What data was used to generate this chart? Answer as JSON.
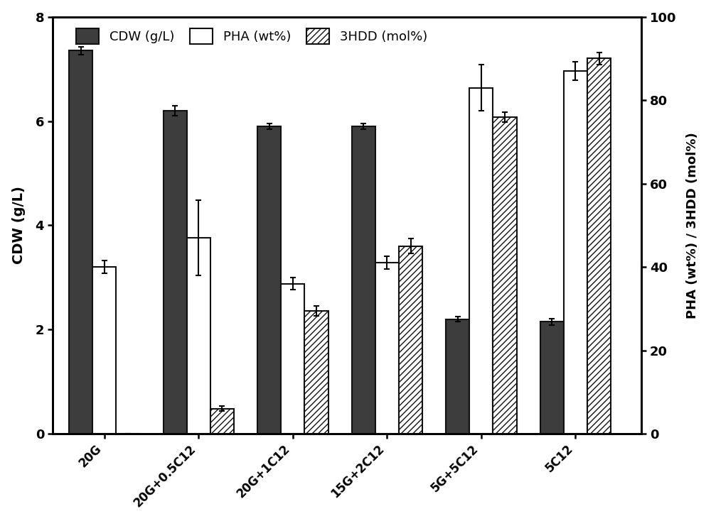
{
  "categories": [
    "20G",
    "20G+0.5C12",
    "20G+1C12",
    "15G+2C12",
    "5G+5C12",
    "5C12"
  ],
  "cdw_values": [
    7.35,
    6.2,
    5.9,
    5.9,
    2.2,
    2.15
  ],
  "cdw_errors": [
    0.08,
    0.1,
    0.05,
    0.05,
    0.05,
    0.06
  ],
  "pha_values": [
    40.0,
    47.0,
    36.0,
    41.0,
    83.0,
    87.0
  ],
  "pha_errors": [
    1.5,
    9.0,
    1.5,
    1.5,
    5.5,
    2.2
  ],
  "hdd_values": [
    0.0,
    6.0,
    29.5,
    45.0,
    76.0,
    90.0
  ],
  "hdd_errors": [
    0.0,
    0.6,
    1.2,
    1.8,
    1.2,
    1.5
  ],
  "cdw_color": "#3d3d3d",
  "pha_color": "#ffffff",
  "hdd_color": "#ffffff",
  "left_ylim": [
    0,
    8
  ],
  "right_ylim": [
    0,
    100
  ],
  "left_ylabel": "CDW (g/L)",
  "right_ylabel": "PHA (wt%) / 3HDD (mol%)",
  "left_yticks": [
    0,
    2,
    4,
    6,
    8
  ],
  "right_yticks": [
    0,
    20,
    40,
    60,
    80,
    100
  ],
  "legend_labels": [
    "CDW (g/L)",
    "PHA (wt%)",
    "3HDD (mol%)"
  ],
  "bar_width": 0.25,
  "edge_color": "#111111",
  "hatch_pattern": "////"
}
